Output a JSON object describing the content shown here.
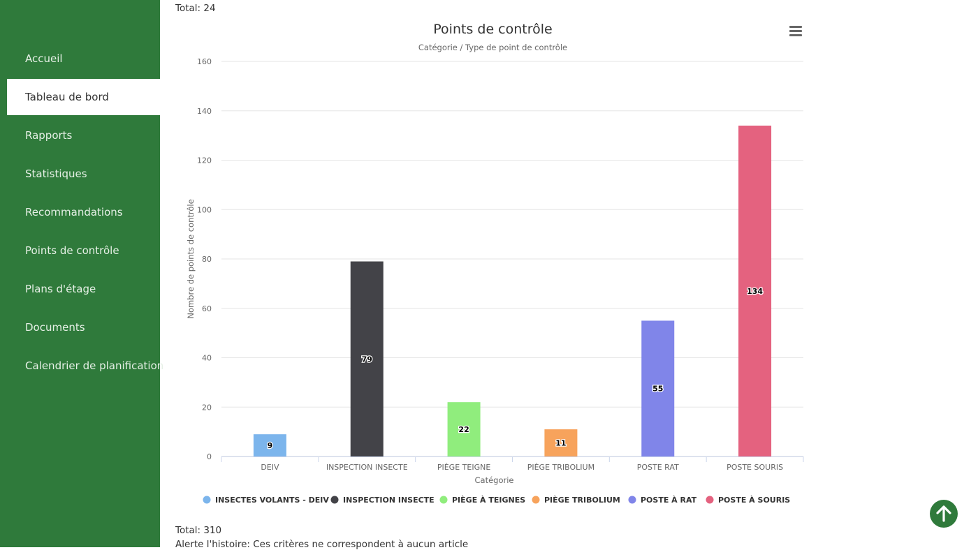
{
  "sidebar": {
    "items": [
      {
        "label": "Accueil",
        "active": false
      },
      {
        "label": "Tableau de bord",
        "active": true
      },
      {
        "label": "Rapports",
        "active": false
      },
      {
        "label": "Statistiques",
        "active": false
      },
      {
        "label": "Recommandations",
        "active": false
      },
      {
        "label": "Points de contrôle",
        "active": false
      },
      {
        "label": "Plans d'étage",
        "active": false
      },
      {
        "label": "Documents",
        "active": false
      },
      {
        "label": "Calendrier de planification",
        "active": false
      }
    ]
  },
  "totals": {
    "top": "Total: 24",
    "bottom": "Total: 310"
  },
  "alert": "Alerte l'histoire: Ces critères ne correspondent à aucun article",
  "colors": {
    "sidebar": "#2f7a3b",
    "grid": "#e6e6e6",
    "axis": "#ccd6eb"
  },
  "chart_data": {
    "type": "bar",
    "title": "Points de contrôle",
    "subtitle": "Catégorie / Type de point de contrôle",
    "xlabel": "Catégorie",
    "ylabel": "Nombre de points de contrôle",
    "ylim": [
      0,
      160
    ],
    "yticks": [
      0,
      20,
      40,
      60,
      80,
      100,
      120,
      140,
      160
    ],
    "categories": [
      "DEIV",
      "INSPECTION INSECTE",
      "PIÈGE TEIGNE",
      "PIÈGE TRIBOLIUM",
      "POSTE RAT",
      "POSTE SOURIS"
    ],
    "series": [
      {
        "name": "INSECTES VOLANTS - DEIV",
        "values": [
          9,
          null,
          null,
          null,
          null,
          null
        ],
        "color": "#7cb5ec"
      },
      {
        "name": "INSPECTION INSECTE",
        "values": [
          null,
          79,
          null,
          null,
          null,
          null
        ],
        "color": "#434348"
      },
      {
        "name": "PIÈGE À TEIGNES",
        "values": [
          null,
          null,
          22,
          null,
          null,
          null
        ],
        "color": "#90ed7d"
      },
      {
        "name": "PIÈGE TRIBOLIUM",
        "values": [
          null,
          null,
          null,
          11,
          null,
          null
        ],
        "color": "#f7a35c"
      },
      {
        "name": "POSTE À RAT",
        "values": [
          null,
          null,
          null,
          null,
          55,
          null
        ],
        "color": "#8085e9"
      },
      {
        "name": "POSTE À SOURIS",
        "values": [
          null,
          null,
          null,
          null,
          null,
          134
        ],
        "color": "#e4627f"
      }
    ],
    "legend_position": "bottom",
    "grid": true
  }
}
